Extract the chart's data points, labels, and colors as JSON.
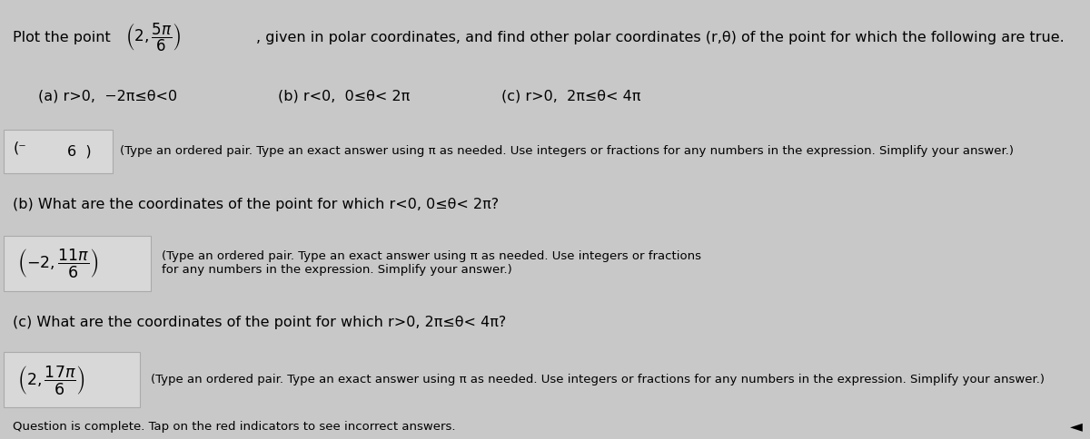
{
  "bg_color": "#c8c8c8",
  "fs_main": 11.5,
  "fs_small": 9.5,
  "title_pre": "Plot the point ",
  "title_post": ", given in polar coordinates, and find other polar coordinates (r,θ) of the point for which the following are true.",
  "point_latex": "$\\left(2,\\dfrac{5\\pi}{6}\\right)$",
  "cond_a": "(a) r>0,  −2π≤θ<0",
  "cond_b": "(b) r<0,  0≤θ< 2π",
  "cond_c": "(c) r>0,  2π≤θ< 4π",
  "ans_a_latex": "$(^{-}\\;\\;\\;\\;6\\;)$",
  "ans_a_note": "(Type an ordered pair. Type an exact answer using π as needed. Use integers or fractions for any numbers in the expression. Simplify your answer.)",
  "q_b": "(b) What are the coordinates of the point for which r<0, 0≤θ< 2π?",
  "ans_b_latex": "$\\left(-2,\\dfrac{11\\pi}{6}\\right)$",
  "ans_b_note": "(Type an ordered pair. Type an exact answer using π as needed. Use integers or fractions for any numbers in the expression. Simplify your answer.)",
  "q_c": "(c) What are the coordinates of the point for which r>0, 2π≤θ< 4π?",
  "ans_c_latex": "$\\left(2,\\dfrac{17\\pi}{6}\\right)$",
  "ans_c_note": "(Type an ordered pair. Type an exact answer using π as needed. Use integers or fractions for any numbers in the expression. Simplify your answer.)",
  "footer": "Question is complete. Tap on the red indicators to see incorrect answers.",
  "arrow": "◄"
}
